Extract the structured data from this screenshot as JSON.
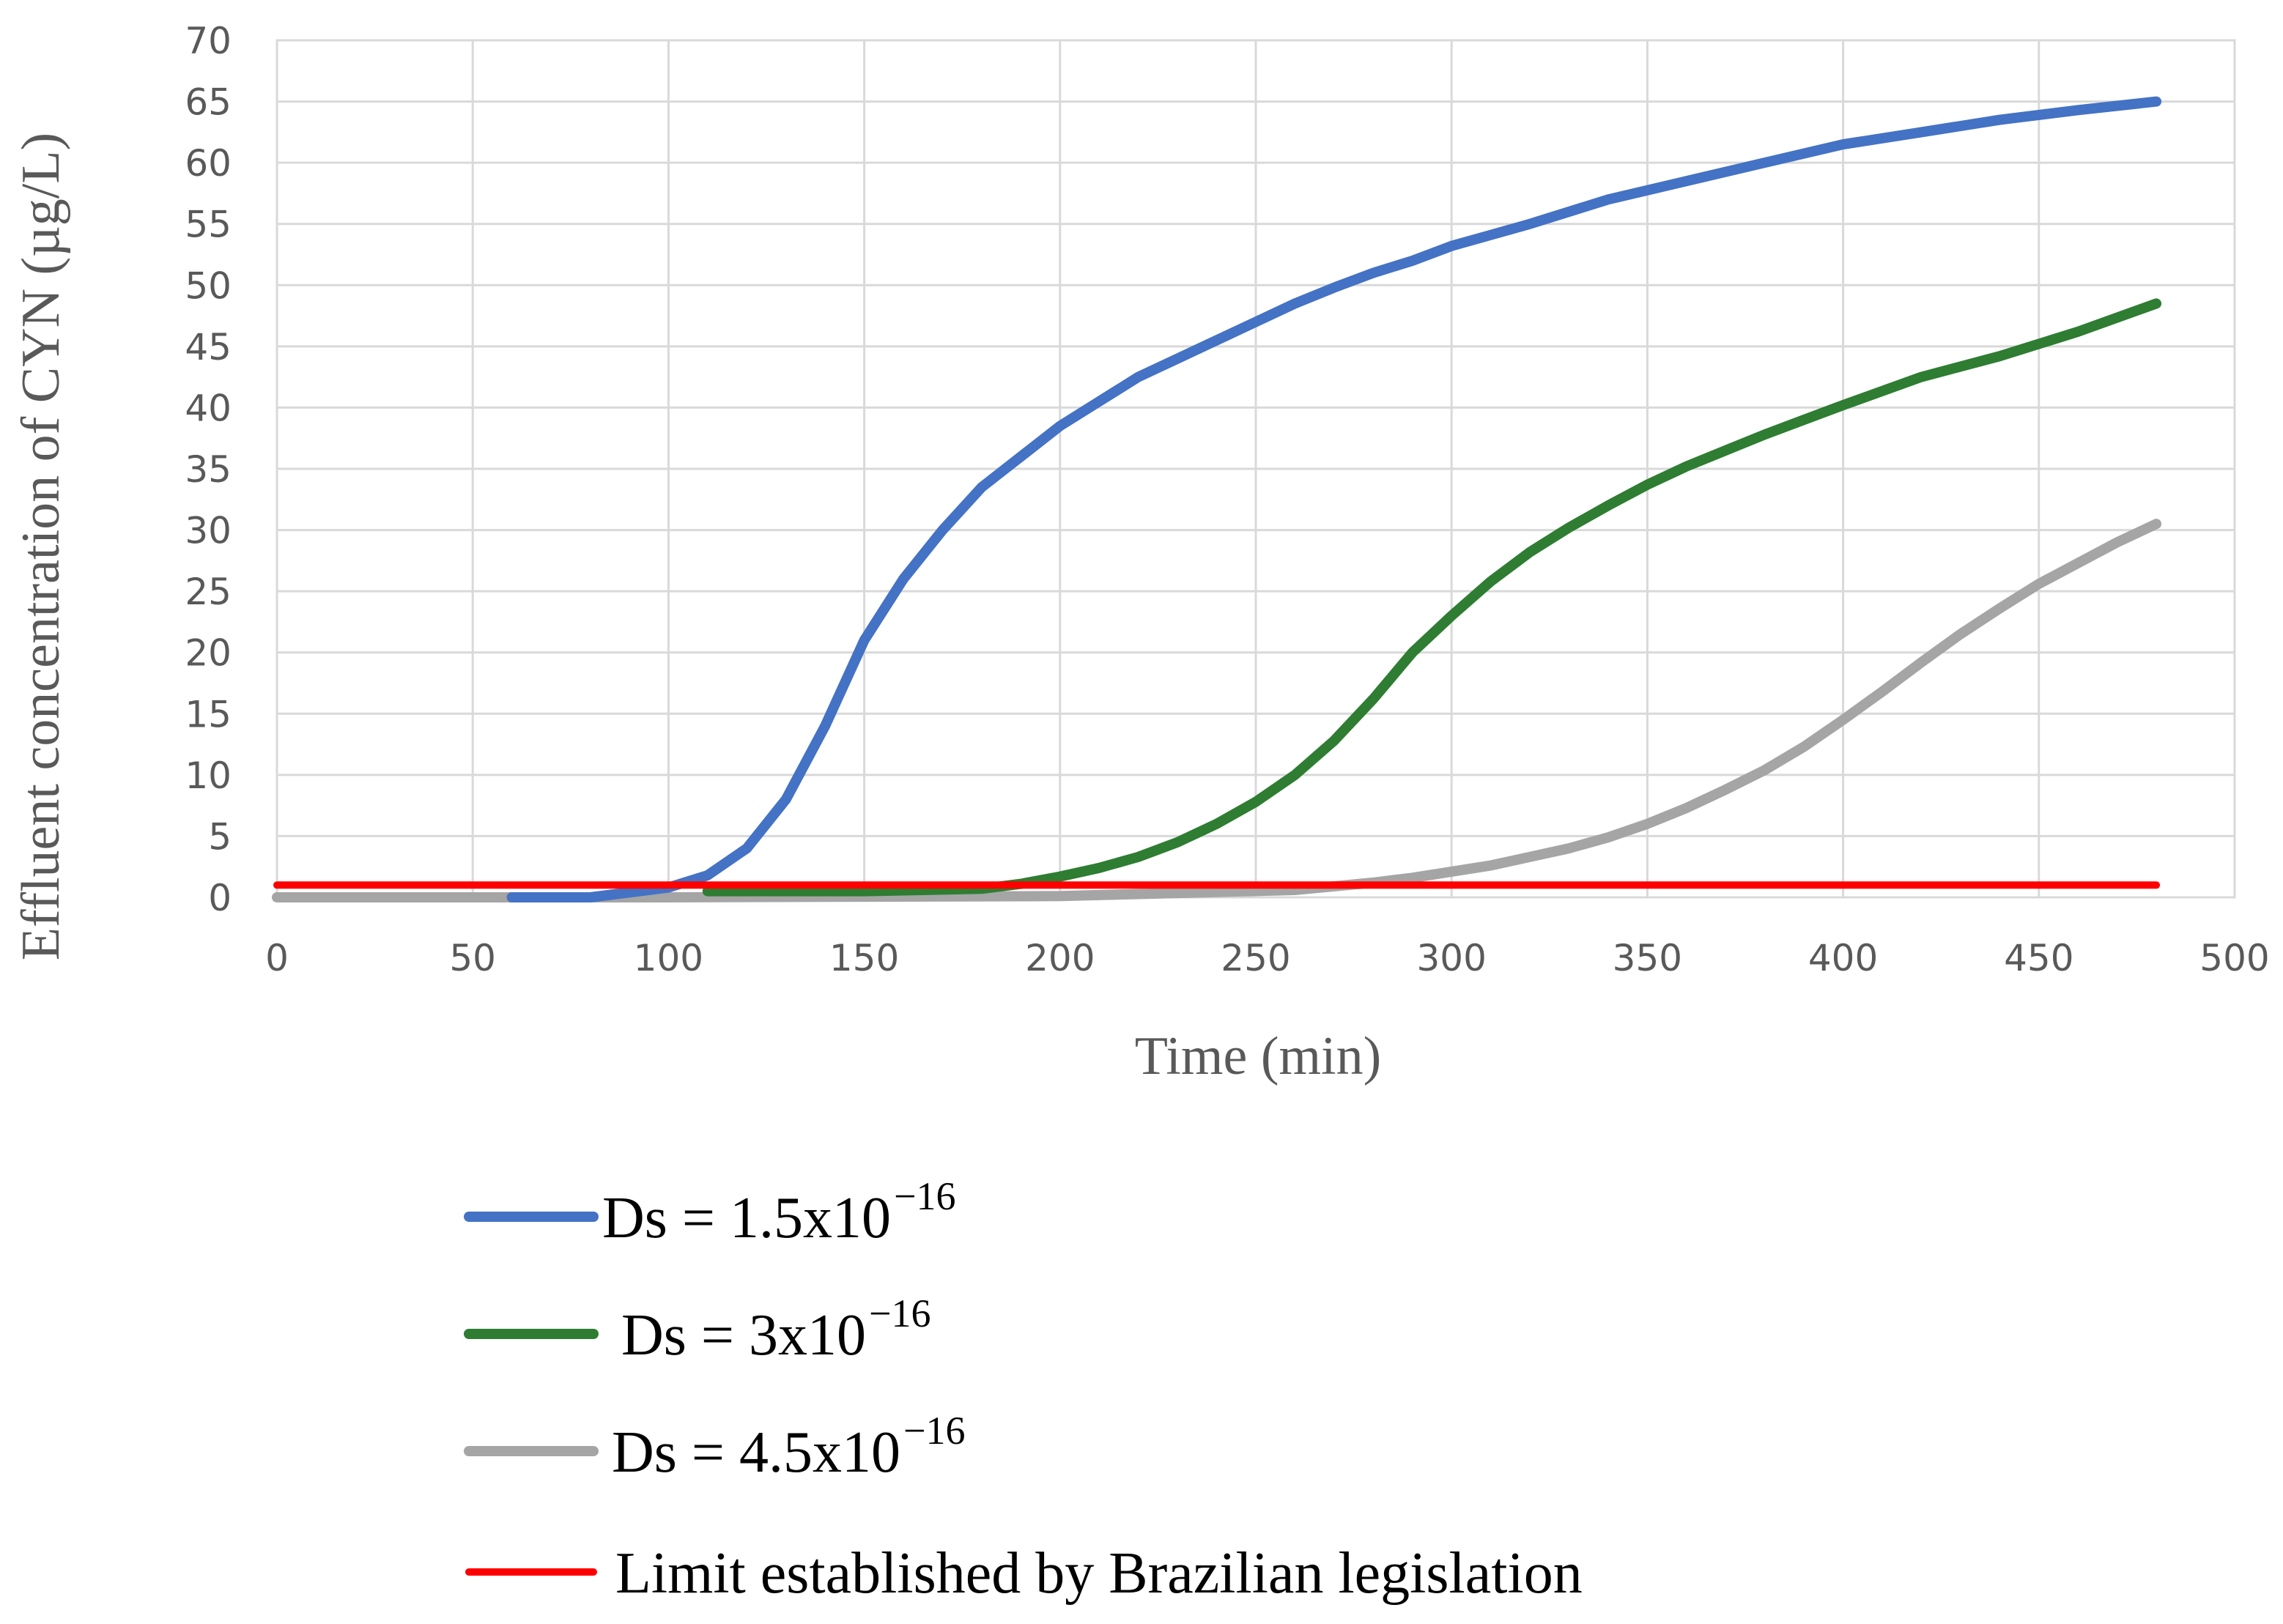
{
  "chart_data": {
    "type": "line",
    "xlabel": "Time (min)",
    "ylabel": "Effluent concentration of CYN (µg/L)",
    "xlim": [
      0,
      500
    ],
    "ylim": [
      0,
      70
    ],
    "xticks": [
      0,
      50,
      100,
      150,
      200,
      250,
      300,
      350,
      400,
      450,
      500
    ],
    "yticks": [
      0,
      5,
      10,
      15,
      20,
      25,
      30,
      35,
      40,
      45,
      50,
      55,
      60,
      65,
      70
    ],
    "grid": true,
    "legend_position": "bottom",
    "series": [
      {
        "name": "Ds = 1.5x10",
        "name_exponent": "−16",
        "color": "#4472c4",
        "x": [
          60,
          80,
          100,
          110,
          120,
          130,
          140,
          150,
          160,
          170,
          180,
          190,
          200,
          210,
          220,
          230,
          240,
          250,
          260,
          270,
          280,
          290,
          300,
          320,
          340,
          360,
          380,
          400,
          420,
          440,
          460,
          480
        ],
        "y": [
          0,
          0,
          0.8,
          1.8,
          4,
          8,
          14,
          21,
          26,
          30,
          33.5,
          36,
          38.5,
          40.5,
          42.5,
          44,
          45.5,
          47,
          48.5,
          49.8,
          51,
          52,
          53.2,
          55,
          57,
          58.5,
          60,
          61.5,
          62.5,
          63.5,
          64.3,
          65
        ]
      },
      {
        "name": "Ds = 3x10",
        "name_exponent": "−16",
        "color": "#2e7d32",
        "x": [
          110,
          150,
          180,
          190,
          200,
          210,
          220,
          230,
          240,
          250,
          260,
          270,
          280,
          290,
          300,
          310,
          320,
          330,
          340,
          350,
          360,
          370,
          380,
          390,
          400,
          420,
          440,
          460,
          480
        ],
        "y": [
          0.5,
          0.5,
          0.7,
          1.1,
          1.7,
          2.4,
          3.3,
          4.5,
          6,
          7.8,
          10,
          12.8,
          16.2,
          20,
          23,
          25.8,
          28.2,
          30.2,
          32,
          33.7,
          35.2,
          36.5,
          37.8,
          39,
          40.2,
          42.5,
          44.2,
          46.2,
          48.5
        ]
      },
      {
        "name": "Ds = 4.5x10",
        "name_exponent": "−16",
        "color": "#a5a5a5",
        "x": [
          0,
          100,
          200,
          260,
          280,
          290,
          300,
          310,
          320,
          330,
          340,
          350,
          360,
          370,
          380,
          390,
          400,
          410,
          420,
          430,
          440,
          450,
          460,
          470,
          480
        ],
        "y": [
          0,
          0,
          0.1,
          0.6,
          1.2,
          1.6,
          2.1,
          2.6,
          3.3,
          4,
          4.9,
          6,
          7.3,
          8.8,
          10.4,
          12.3,
          14.5,
          16.8,
          19.2,
          21.5,
          23.6,
          25.6,
          27.3,
          29,
          30.5
        ]
      },
      {
        "name": "Limit established by Brazilian legislation",
        "color": "#ff0000",
        "x": [
          0,
          480
        ],
        "y": [
          1,
          1
        ]
      }
    ]
  }
}
